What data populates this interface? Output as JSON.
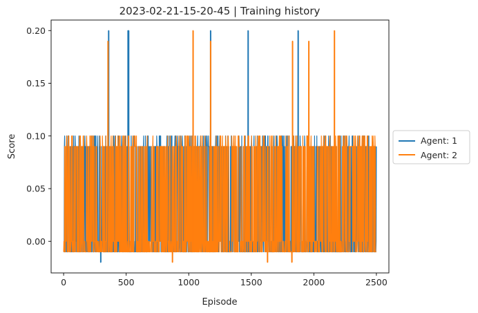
{
  "chart_data": {
    "type": "line",
    "title": "2023-02-21-15-20-45 | Training history",
    "xlabel": "Episode",
    "ylabel": "Score",
    "xlim": [
      -100,
      2600
    ],
    "ylim": [
      -0.03,
      0.21
    ],
    "xticks": [
      0,
      500,
      1000,
      1500,
      2000,
      2500
    ],
    "yticks": [
      0.0,
      0.05,
      0.1,
      0.15,
      0.2
    ],
    "ytick_labels": [
      "0.00",
      "0.05",
      "0.10",
      "0.15",
      "0.20"
    ],
    "grid": false,
    "legend_position": "outside-right",
    "n_episodes": 2500,
    "series": [
      {
        "name": "Agent: 1",
        "color": "#1f77b4",
        "baseline": [
          -0.01,
          0.0,
          0.09,
          0.1
        ],
        "peaks": [
          {
            "x": 297,
            "y": -0.02
          },
          {
            "x": 360,
            "y": 0.2
          },
          {
            "x": 515,
            "y": 0.2
          },
          {
            "x": 520,
            "y": 0.2
          },
          {
            "x": 1175,
            "y": 0.2
          },
          {
            "x": 1475,
            "y": 0.2
          },
          {
            "x": 1875,
            "y": 0.2
          }
        ]
      },
      {
        "name": "Agent: 2",
        "color": "#ff7f0e",
        "baseline": [
          -0.01,
          0.0,
          0.09,
          0.1
        ],
        "peaks": [
          {
            "x": 355,
            "y": 0.19
          },
          {
            "x": 870,
            "y": -0.02
          },
          {
            "x": 1035,
            "y": 0.2
          },
          {
            "x": 1175,
            "y": 0.19
          },
          {
            "x": 1630,
            "y": -0.02
          },
          {
            "x": 1825,
            "y": -0.02
          },
          {
            "x": 1830,
            "y": 0.19
          },
          {
            "x": 1960,
            "y": 0.19
          },
          {
            "x": 2165,
            "y": 0.2
          }
        ]
      }
    ]
  }
}
